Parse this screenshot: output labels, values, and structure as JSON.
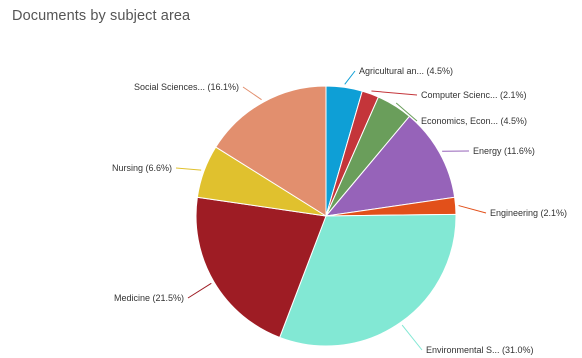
{
  "chart_data": {
    "type": "pie",
    "title": "Documents by subject area",
    "slices": [
      {
        "label": "Agricultural an... (4.5%)",
        "value": 4.5,
        "color": "#0e9fd6"
      },
      {
        "label": "Computer Scienc... (2.1%)",
        "value": 2.1,
        "color": "#c4353a"
      },
      {
        "label": "Economics, Econ... (4.5%)",
        "value": 4.5,
        "color": "#6a9e5b"
      },
      {
        "label": "Energy (11.6%)",
        "value": 11.6,
        "color": "#9663b9"
      },
      {
        "label": "Engineering (2.1%)",
        "value": 2.1,
        "color": "#e2501a"
      },
      {
        "label": "Environmental S... (31.0%)",
        "value": 31.0,
        "color": "#82e8d4"
      },
      {
        "label": "Medicine (21.5%)",
        "value": 21.5,
        "color": "#9e1c24"
      },
      {
        "label": "Nursing (6.6%)",
        "value": 6.6,
        "color": "#e0c12e"
      },
      {
        "label": "Social Sciences... (16.1%)",
        "value": 16.1,
        "color": "#e28f6e"
      }
    ]
  }
}
